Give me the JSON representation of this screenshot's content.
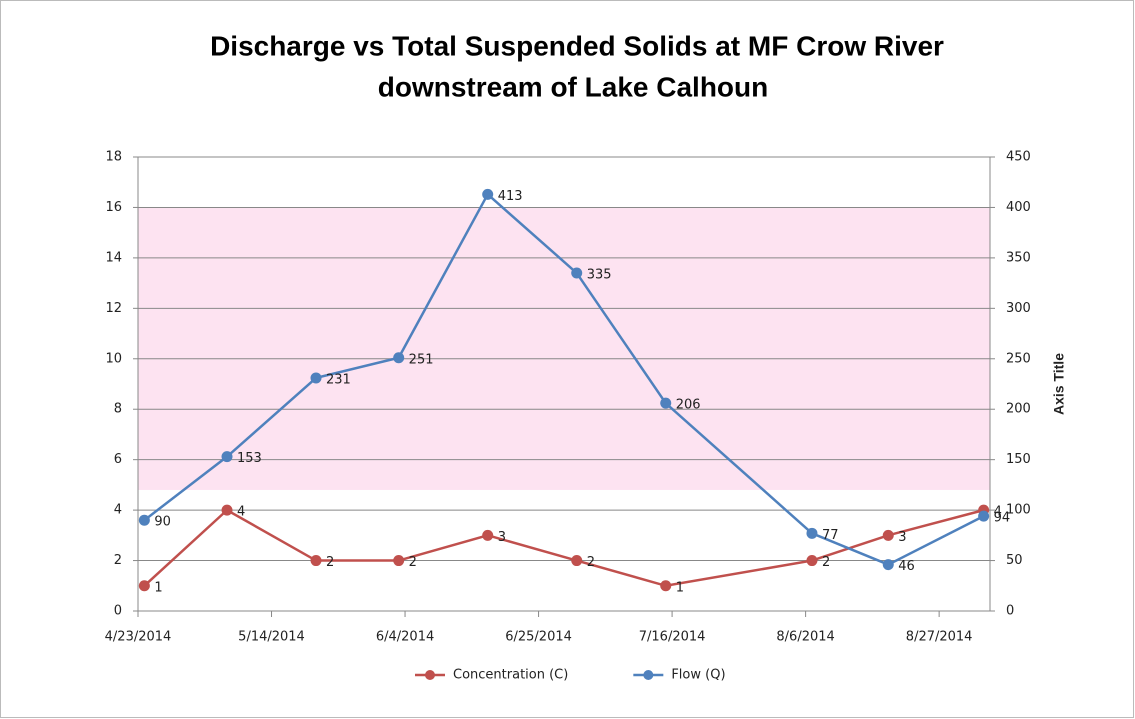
{
  "chart_data": {
    "type": "line",
    "title": "Discharge vs Total Suspended Solids at MF Crow River",
    "subtitle": "downstream of Lake Calhoun",
    "y2_label": "Axis Title",
    "x": [
      "2014-04-24",
      "2014-05-07",
      "2014-05-21",
      "2014-06-03",
      "2014-06-17",
      "2014-07-01",
      "2014-07-15",
      "2014-08-07",
      "2014-08-19",
      "2014-09-03"
    ],
    "xlim": [
      "2014-04-23",
      "2014-09-04"
    ],
    "xticks": [
      {
        "value": "2014-04-23",
        "label": "4/23/2014"
      },
      {
        "value": "2014-05-14",
        "label": "5/14/2014"
      },
      {
        "value": "2014-06-04",
        "label": "6/4/2014"
      },
      {
        "value": "2014-06-25",
        "label": "6/25/2014"
      },
      {
        "value": "2014-07-16",
        "label": "7/16/2014"
      },
      {
        "value": "2014-08-06",
        "label": "8/6/2014"
      },
      {
        "value": "2014-08-27",
        "label": "8/27/2014"
      }
    ],
    "ylim": [
      0,
      18
    ],
    "yticks": [
      0,
      2,
      4,
      6,
      8,
      10,
      12,
      14,
      16,
      18
    ],
    "y2lim": [
      0,
      450
    ],
    "y2ticks": [
      0,
      50,
      100,
      150,
      200,
      250,
      300,
      350,
      400,
      450
    ],
    "grid": true,
    "shaded_range": [
      4.8,
      16
    ],
    "shaded_color": "#fde3f1",
    "legend": "bottom",
    "series": [
      {
        "name": "Concentration (C)",
        "color": "#c0504d",
        "values": [
          1,
          4,
          2,
          2,
          3,
          2,
          1,
          2,
          3,
          4
        ]
      },
      {
        "name": "Flow (Q)",
        "color": "#4f81bd",
        "axis": "y2",
        "values": [
          90,
          153,
          231,
          251,
          413,
          335,
          206,
          77,
          46,
          94
        ]
      }
    ]
  }
}
